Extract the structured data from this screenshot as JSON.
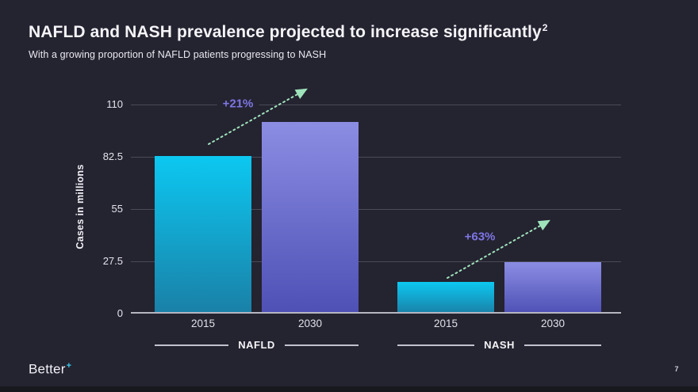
{
  "slide": {
    "title": "NAFLD and NASH prevalence projected to increase significantly",
    "title_superscript": "2",
    "subtitle": "With a growing proportion of NAFLD patients progressing to NASH",
    "page_number": "7",
    "logo": {
      "text": "Better",
      "plus": "+"
    }
  },
  "colors": {
    "background": "#242330",
    "text_primary": "#f4f4f8",
    "gridline": "#4b4b58",
    "axis_line": "#b6b6c1",
    "annotation_purple": "#7e76e4",
    "arrow_mint": "#9fe3bb",
    "logo_plus_cyan": "#3cc9e8"
  },
  "chart_data": {
    "type": "bar",
    "title": "NAFLD and NASH prevalence projected to increase significantly",
    "xlabel": "",
    "ylabel": "Cases in millions",
    "ylim": [
      0,
      110
    ],
    "yticks": [
      0,
      27.5,
      55,
      82.5,
      110
    ],
    "grid": true,
    "legend": "none",
    "palette": {
      "cyan": {
        "top": "#0cc8f1",
        "bottom": "#1a80a7"
      },
      "purple": {
        "top": "#8b8de3",
        "bottom": "#4e50b5"
      }
    },
    "groups": [
      {
        "label": "NAFLD",
        "annotation": "+21%",
        "bars": [
          {
            "category": "2015",
            "value": 83,
            "palette": "cyan"
          },
          {
            "category": "2030",
            "value": 101,
            "palette": "purple"
          }
        ]
      },
      {
        "label": "NASH",
        "annotation": "+63%",
        "bars": [
          {
            "category": "2015",
            "value": 16.5,
            "palette": "cyan"
          },
          {
            "category": "2030",
            "value": 27,
            "palette": "purple"
          }
        ]
      }
    ]
  }
}
